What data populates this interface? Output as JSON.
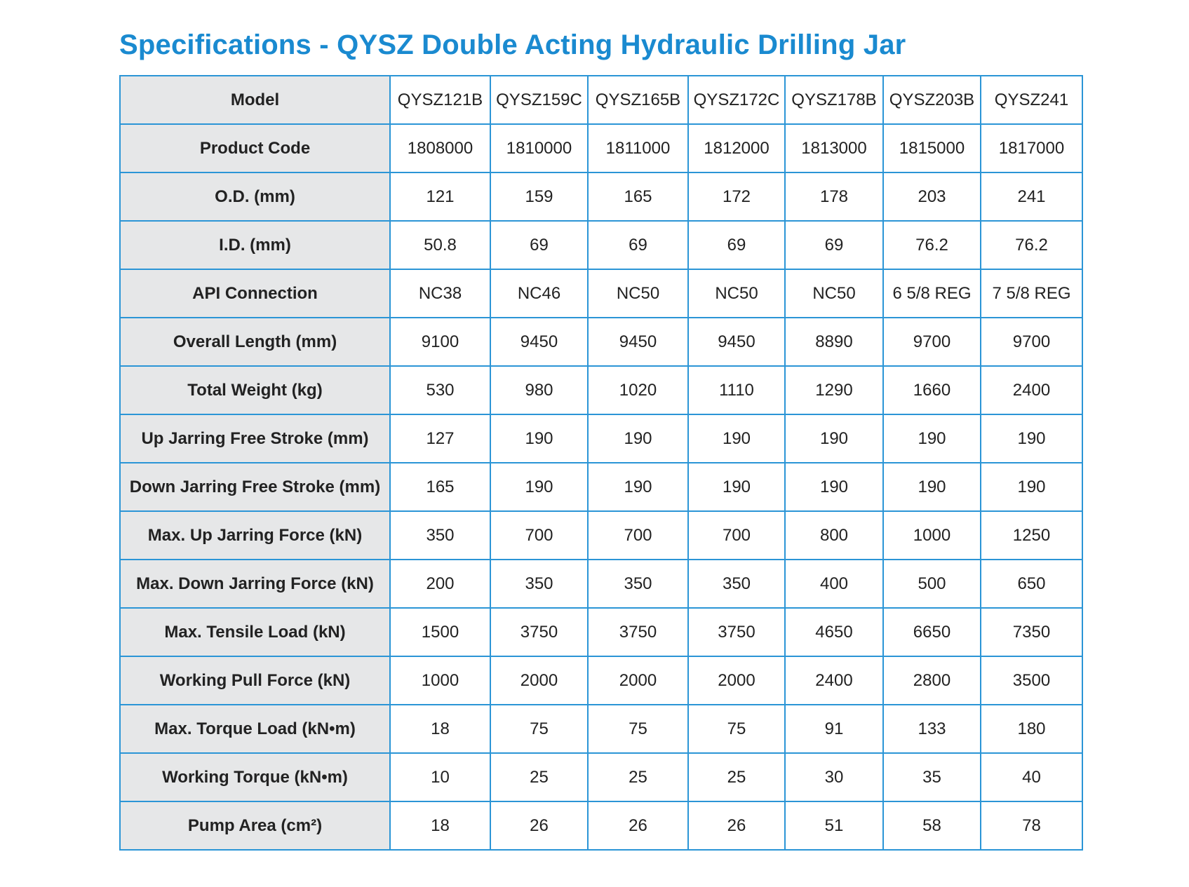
{
  "title": "Specifications - QYSZ Double Acting Hydraulic Drilling Jar",
  "colors": {
    "title": "#1a8ad0",
    "border": "#2b95d6",
    "label_bg": "#e6e7e8"
  },
  "table": {
    "rows": [
      {
        "label": "Model",
        "values": [
          "QYSZ121B",
          "QYSZ159C",
          "QYSZ165B",
          "QYSZ172C",
          "QYSZ178B",
          "QYSZ203B",
          "QYSZ241"
        ]
      },
      {
        "label": "Product Code",
        "values": [
          "1808000",
          "1810000",
          "1811000",
          "1812000",
          "1813000",
          "1815000",
          "1817000"
        ]
      },
      {
        "label": "O.D. (mm)",
        "values": [
          "121",
          "159",
          "165",
          "172",
          "178",
          "203",
          "241"
        ]
      },
      {
        "label": "I.D. (mm)",
        "values": [
          "50.8",
          "69",
          "69",
          "69",
          "69",
          "76.2",
          "76.2"
        ]
      },
      {
        "label": "API Connection",
        "values": [
          "NC38",
          "NC46",
          "NC50",
          "NC50",
          "NC50",
          "6 5/8 REG",
          "7 5/8 REG"
        ]
      },
      {
        "label": "Overall Length (mm)",
        "values": [
          "9100",
          "9450",
          "9450",
          "9450",
          "8890",
          "9700",
          "9700"
        ]
      },
      {
        "label": "Total Weight (kg)",
        "values": [
          "530",
          "980",
          "1020",
          "1110",
          "1290",
          "1660",
          "2400"
        ]
      },
      {
        "label": "Up Jarring Free Stroke (mm)",
        "values": [
          "127",
          "190",
          "190",
          "190",
          "190",
          "190",
          "190"
        ]
      },
      {
        "label": "Down Jarring Free Stroke (mm)",
        "values": [
          "165",
          "190",
          "190",
          "190",
          "190",
          "190",
          "190"
        ]
      },
      {
        "label": "Max. Up Jarring Force (kN)",
        "values": [
          "350",
          "700",
          "700",
          "700",
          "800",
          "1000",
          "1250"
        ]
      },
      {
        "label": "Max. Down Jarring Force (kN)",
        "values": [
          "200",
          "350",
          "350",
          "350",
          "400",
          "500",
          "650"
        ]
      },
      {
        "label": "Max. Tensile Load (kN)",
        "values": [
          "1500",
          "3750",
          "3750",
          "3750",
          "4650",
          "6650",
          "7350"
        ]
      },
      {
        "label": "Working Pull Force (kN)",
        "values": [
          "1000",
          "2000",
          "2000",
          "2000",
          "2400",
          "2800",
          "3500"
        ]
      },
      {
        "label": "Max. Torque Load (kN•m)",
        "values": [
          "18",
          "75",
          "75",
          "75",
          "91",
          "133",
          "180"
        ]
      },
      {
        "label": "Working Torque (kN•m)",
        "values": [
          "10",
          "25",
          "25",
          "25",
          "30",
          "35",
          "40"
        ]
      },
      {
        "label": "Pump Area (cm²)",
        "values": [
          "18",
          "26",
          "26",
          "26",
          "51",
          "58",
          "78"
        ]
      }
    ]
  }
}
